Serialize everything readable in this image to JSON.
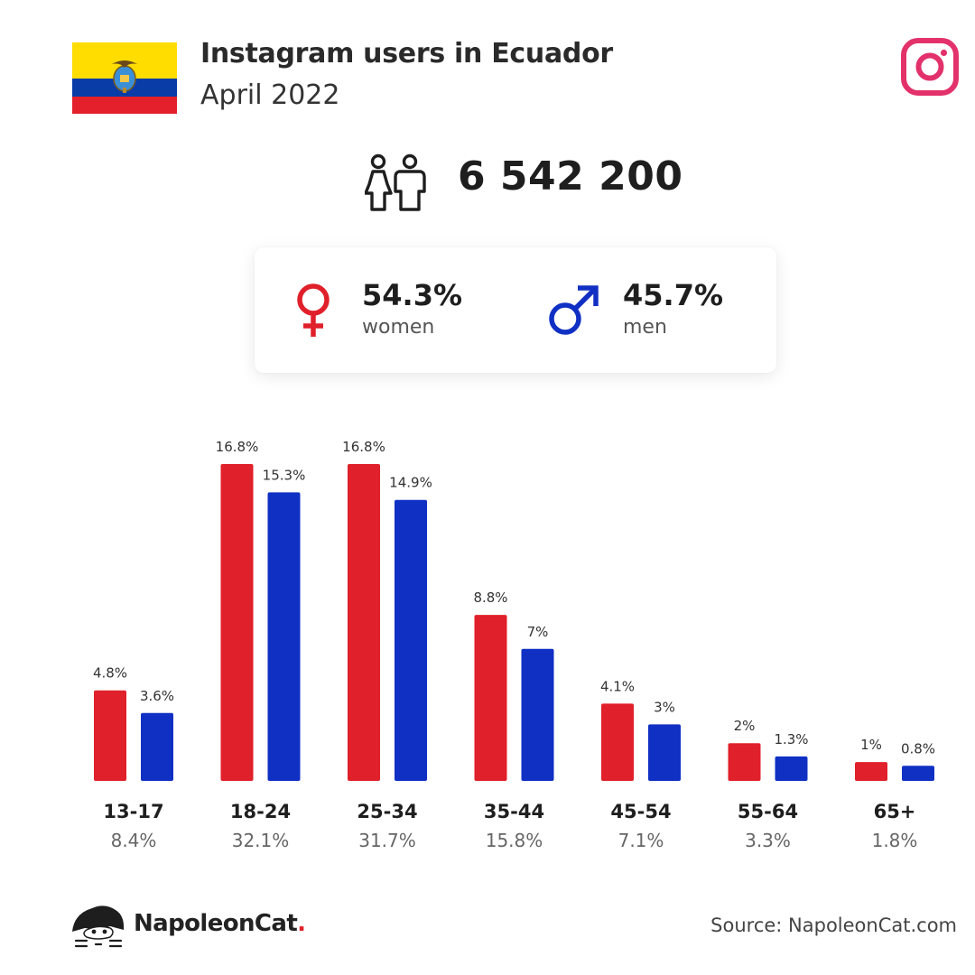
{
  "header": {
    "title": "Instagram users in Ecuador",
    "subtitle": "April 2022"
  },
  "total_users": "6 542 200",
  "gender": {
    "women_pct": "54.3%",
    "women_label": "women",
    "men_pct": "45.7%",
    "men_label": "men"
  },
  "colors": {
    "women": "#e0202a",
    "men": "#1030c4",
    "instagram": "#e3326b"
  },
  "icons": {
    "flag": "ecuador-flag-icon",
    "instagram": "instagram-icon",
    "people": "people-icon",
    "female": "female-symbol-icon",
    "male": "male-symbol-icon",
    "brand": "napoleoncat-logo-icon"
  },
  "chart_data": {
    "type": "bar",
    "categories": [
      "13-17",
      "18-24",
      "25-34",
      "35-44",
      "45-54",
      "55-64",
      "65+"
    ],
    "series": [
      {
        "name": "women",
        "values": [
          4.8,
          16.8,
          16.8,
          8.8,
          4.1,
          2,
          1
        ],
        "labels": [
          "4.8%",
          "16.8%",
          "16.8%",
          "8.8%",
          "4.1%",
          "2%",
          "1%"
        ]
      },
      {
        "name": "men",
        "values": [
          3.6,
          15.3,
          14.9,
          7,
          3,
          1.3,
          0.8
        ],
        "labels": [
          "3.6%",
          "15.3%",
          "14.9%",
          "7%",
          "3%",
          "1.3%",
          "0.8%"
        ]
      }
    ],
    "group_totals": [
      "8.4%",
      "32.1%",
      "31.7%",
      "15.8%",
      "7.1%",
      "3.3%",
      "1.8%"
    ],
    "ylim": [
      0,
      16.8
    ],
    "grid": false,
    "legend": "none"
  },
  "footer": {
    "brand": "NapoleonCat",
    "brand_dot": ".",
    "source": "Source: NapoleonCat.com"
  }
}
